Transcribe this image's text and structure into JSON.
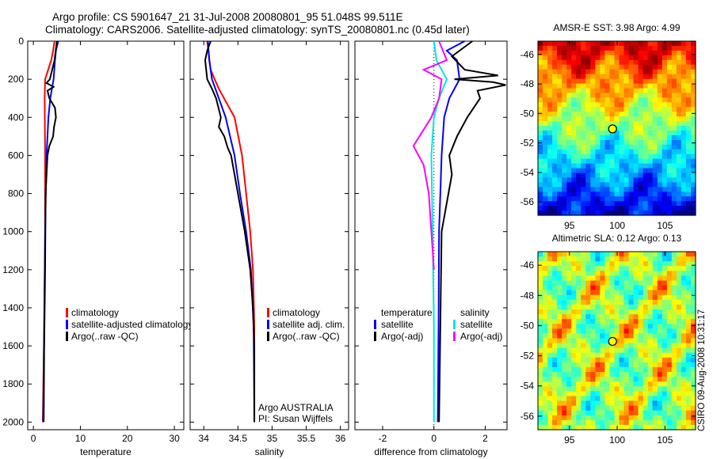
{
  "header": {
    "title_line1": "Argo profile: CS 5901647_21 31-Jul-2008 20080801_95 51.048S 99.511E",
    "title_line2": "Climatology: CARS2006. Satellite-adjusted climatology: synTS_20080801.nc (0.45d later)"
  },
  "footer": "CSIRO 09-Aug-2008 10:31:17",
  "chart_data": [
    {
      "type": "line",
      "id": "temperature",
      "xlabel": "temperature",
      "ylabel": "",
      "xlim": [
        -1.2,
        32
      ],
      "ylim": [
        2040,
        0
      ],
      "xticks": [
        0,
        10,
        20,
        30
      ],
      "yticks": [
        0,
        200,
        400,
        600,
        800,
        1000,
        1200,
        1400,
        1600,
        1800,
        2000
      ],
      "legend": [
        "climatology",
        "satellite-adjusted climatology",
        "Argo(..raw -QC)"
      ],
      "series": [
        {
          "name": "climatology",
          "color": "#ff0000",
          "depth": [
            0,
            50,
            100,
            200,
            300,
            600,
            1000,
            1500,
            2000
          ],
          "values": [
            4.5,
            4.2,
            3.8,
            2.5,
            2.4,
            2.5,
            2.5,
            2.3,
            2.0
          ]
        },
        {
          "name": "satellite-adjusted climatology",
          "color": "#0000ff",
          "depth": [
            0,
            50,
            100,
            200,
            300,
            400,
            600,
            1000,
            1500,
            2000
          ],
          "values": [
            5.3,
            4.8,
            4.6,
            4.3,
            3.6,
            3.2,
            2.8,
            2.5,
            2.3,
            2.1
          ]
        },
        {
          "name": "Argo(..raw -QC)",
          "color": "#000000",
          "depth": [
            0,
            100,
            200,
            220,
            240,
            260,
            300,
            350,
            400,
            450,
            500,
            550,
            600,
            800,
            1200,
            1600,
            2000
          ],
          "values": [
            5.0,
            4.5,
            3.5,
            2.8,
            4.3,
            3.0,
            3.4,
            4.6,
            4.8,
            4.4,
            4.2,
            3.4,
            3.0,
            2.6,
            2.5,
            2.3,
            2.2
          ]
        }
      ]
    },
    {
      "type": "line",
      "id": "salinity",
      "xlabel": "salinity",
      "xlim": [
        33.8,
        36.12
      ],
      "ylim": [
        2040,
        0
      ],
      "xticks": [
        34,
        34.5,
        35,
        35.5,
        36
      ],
      "yticks": [
        0,
        200,
        400,
        600,
        800,
        1000,
        1200,
        1400,
        1600,
        1800,
        2000
      ],
      "legend": [
        "climatology",
        "satellite adj. clim.",
        "Argo(..raw -QC)"
      ],
      "annotation": [
        "Argo AUSTRALIA",
        "PI: Susan Wijffels"
      ],
      "series": [
        {
          "name": "climatology",
          "color": "#ff0000",
          "depth": [
            0,
            150,
            250,
            400,
            600,
            800,
            1000,
            1200,
            1500,
            2000
          ],
          "values": [
            34.05,
            34.1,
            34.22,
            34.45,
            34.56,
            34.62,
            34.68,
            34.72,
            34.74,
            34.74
          ]
        },
        {
          "name": "satellite adj. clim.",
          "color": "#0000ff",
          "depth": [
            0,
            100,
            200,
            300,
            400,
            600,
            800,
            1000,
            1200,
            1500,
            2000
          ],
          "values": [
            34.06,
            34.08,
            34.12,
            34.22,
            34.32,
            34.45,
            34.53,
            34.62,
            34.69,
            34.73,
            34.74
          ]
        },
        {
          "name": "Argo(..raw -QC)",
          "color": "#000000",
          "depth": [
            0,
            50,
            100,
            200,
            250,
            300,
            400,
            450,
            500,
            560,
            600,
            700,
            800,
            1000,
            1200,
            1400,
            1600,
            2000
          ],
          "values": [
            34.1,
            34.05,
            34.02,
            34.05,
            34.12,
            34.18,
            34.25,
            34.22,
            34.3,
            34.35,
            34.4,
            34.45,
            34.5,
            34.6,
            34.68,
            34.72,
            34.74,
            34.74
          ]
        }
      ]
    },
    {
      "type": "line",
      "id": "difference",
      "xlabel": "difference from climatology",
      "xlim": [
        -3.08,
        2.85
      ],
      "ylim": [
        2040,
        0
      ],
      "xticks": [
        -2,
        0,
        2
      ],
      "yticks": [
        0,
        200,
        400,
        600,
        800,
        1000,
        1200,
        1400,
        1600,
        1800,
        2000
      ],
      "legend_temperature": {
        "title": "temperature",
        "items": [
          "satellite",
          "Argo(-adj)"
        ]
      },
      "legend_salinity": {
        "title": "salinity",
        "items": [
          "satellite",
          "Argo(-adj)"
        ]
      },
      "series": [
        {
          "name": "temperature satellite",
          "color": "#0000ff",
          "depth": [
            0,
            50,
            100,
            200,
            300,
            400,
            600,
            1000,
            1500,
            2000
          ],
          "values": [
            1.2,
            0.5,
            0.9,
            1.0,
            0.6,
            0.4,
            0.3,
            0.2,
            0.18,
            0.15
          ]
        },
        {
          "name": "temperature Argo(-adj)",
          "color": "#000000",
          "depth": [
            0,
            80,
            150,
            180,
            200,
            215,
            230,
            260,
            300,
            400,
            500,
            600,
            700,
            1000,
            1500,
            2000
          ],
          "values": [
            1.5,
            0.7,
            1.2,
            2.5,
            0.8,
            2.3,
            2.8,
            1.7,
            1.8,
            1.3,
            0.9,
            0.6,
            0.7,
            0.3,
            0.25,
            0.2
          ]
        },
        {
          "name": "salinity satellite",
          "color": "#00e5e5",
          "depth": [
            0,
            100,
            200,
            300,
            400,
            600,
            1000,
            1500,
            2000
          ],
          "values": [
            0.0,
            0.1,
            0.5,
            0.2,
            0.0,
            -0.1,
            -0.05,
            0.0,
            0.0
          ]
        },
        {
          "name": "salinity Argo(-adj)",
          "color": "#ff00ff",
          "depth": [
            0,
            100,
            150,
            200,
            300,
            400,
            550,
            650,
            800,
            1000,
            1200
          ],
          "values": [
            0.2,
            0.5,
            -0.4,
            0.3,
            0.2,
            -0.1,
            -0.8,
            -0.4,
            -0.2,
            -0.1,
            0.0
          ]
        }
      ]
    },
    {
      "type": "heatmap",
      "id": "sst-map",
      "title": "AMSR-E SST: 3.98 Argo: 4.99",
      "xlim": [
        91.7,
        108.2
      ],
      "ylim": [
        -56.9,
        -45.1
      ],
      "xticks": [
        95,
        100,
        105
      ],
      "yticks": [
        -46,
        -48,
        -50,
        -52,
        -54,
        -56
      ],
      "argo_position": [
        99.511,
        -51.048
      ]
    },
    {
      "type": "heatmap",
      "id": "sla-map",
      "title": "Altimetric SLA: 0.12 Argo: 0.13",
      "xlim": [
        91.7,
        108.2
      ],
      "ylim": [
        -56.9,
        -45.1
      ],
      "xticks": [
        95,
        100,
        105
      ],
      "yticks": [
        -46,
        -48,
        -50,
        -52,
        -54,
        -56
      ],
      "argo_position": [
        99.511,
        -51.048
      ]
    }
  ]
}
